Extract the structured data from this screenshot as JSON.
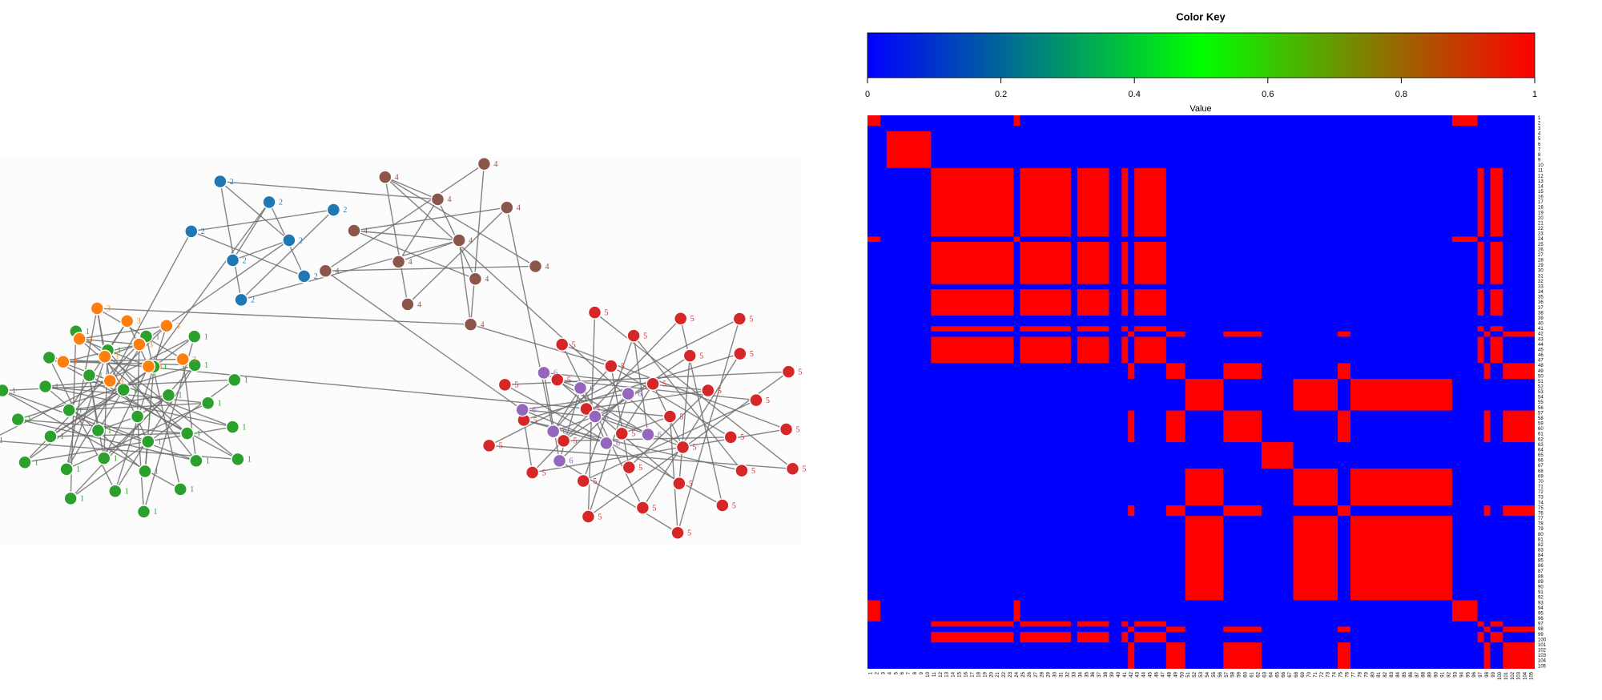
{
  "chart_data": [
    {
      "type": "network",
      "group_colors": {
        "1": "#2ca02c",
        "2": "#1f77b4",
        "3": "#ff7f0e",
        "4": "#8c564b",
        "5": "#d62728",
        "6": "#9467bd"
      },
      "nodes": [
        1,
        1,
        1,
        1,
        1,
        1,
        1,
        1,
        1,
        1,
        1,
        1,
        1,
        1,
        1,
        1,
        1,
        1,
        1,
        1,
        1,
        1,
        1,
        1,
        1,
        1,
        1,
        1,
        1,
        1,
        1,
        1,
        1,
        3,
        3,
        3,
        3,
        3,
        3,
        3,
        3,
        3,
        3,
        2,
        2,
        2,
        2,
        2,
        2,
        2,
        2,
        4,
        4,
        4,
        4,
        4,
        4,
        4,
        4,
        4,
        4,
        4,
        4,
        5,
        5,
        5,
        5,
        5,
        5,
        5,
        5,
        5,
        5,
        5,
        5,
        5,
        5,
        5,
        5,
        5,
        5,
        5,
        5,
        5,
        5,
        5,
        5,
        5,
        5,
        5,
        5,
        5,
        5,
        5,
        5,
        5,
        6,
        6,
        6,
        6,
        6,
        6,
        6,
        6,
        6
      ],
      "edges": [
        [
          0,
          1
        ],
        [
          0,
          5
        ],
        [
          1,
          2
        ],
        [
          1,
          7
        ],
        [
          2,
          3
        ],
        [
          2,
          9
        ],
        [
          3,
          4
        ],
        [
          3,
          11
        ],
        [
          4,
          5
        ],
        [
          4,
          13
        ],
        [
          5,
          6
        ],
        [
          6,
          7
        ],
        [
          6,
          15
        ],
        [
          7,
          8
        ],
        [
          8,
          9
        ],
        [
          8,
          17
        ],
        [
          9,
          10
        ],
        [
          10,
          11
        ],
        [
          10,
          19
        ],
        [
          11,
          12
        ],
        [
          12,
          13
        ],
        [
          12,
          21
        ],
        [
          13,
          14
        ],
        [
          14,
          15
        ],
        [
          14,
          23
        ],
        [
          15,
          16
        ],
        [
          16,
          17
        ],
        [
          16,
          25
        ],
        [
          17,
          18
        ],
        [
          18,
          19
        ],
        [
          18,
          27
        ],
        [
          19,
          20
        ],
        [
          20,
          21
        ],
        [
          20,
          29
        ],
        [
          21,
          22
        ],
        [
          22,
          23
        ],
        [
          22,
          31
        ],
        [
          23,
          24
        ],
        [
          24,
          25
        ],
        [
          25,
          26
        ],
        [
          26,
          27
        ],
        [
          27,
          28
        ],
        [
          28,
          29
        ],
        [
          29,
          30
        ],
        [
          30,
          31
        ],
        [
          31,
          32
        ],
        [
          32,
          0
        ],
        [
          33,
          0
        ],
        [
          33,
          34
        ],
        [
          34,
          2
        ],
        [
          34,
          35
        ],
        [
          35,
          4
        ],
        [
          35,
          36
        ],
        [
          36,
          6
        ],
        [
          36,
          37
        ],
        [
          37,
          8
        ],
        [
          37,
          38
        ],
        [
          38,
          10
        ],
        [
          38,
          39
        ],
        [
          39,
          12
        ],
        [
          39,
          40
        ],
        [
          40,
          14
        ],
        [
          40,
          41
        ],
        [
          41,
          16
        ],
        [
          41,
          42
        ],
        [
          42,
          18
        ],
        [
          42,
          33
        ],
        [
          33,
          37
        ],
        [
          34,
          40
        ],
        [
          43,
          44
        ],
        [
          44,
          45
        ],
        [
          45,
          46
        ],
        [
          46,
          47
        ],
        [
          47,
          48
        ],
        [
          48,
          49
        ],
        [
          49,
          50
        ],
        [
          50,
          43
        ],
        [
          43,
          33
        ],
        [
          45,
          36
        ],
        [
          47,
          39
        ],
        [
          49,
          51
        ],
        [
          50,
          53
        ],
        [
          51,
          52
        ],
        [
          52,
          53
        ],
        [
          53,
          54
        ],
        [
          54,
          55
        ],
        [
          55,
          56
        ],
        [
          56,
          57
        ],
        [
          57,
          58
        ],
        [
          58,
          59
        ],
        [
          59,
          60
        ],
        [
          60,
          61
        ],
        [
          61,
          62
        ],
        [
          62,
          51
        ],
        [
          51,
          55
        ],
        [
          53,
          58
        ],
        [
          56,
          97
        ],
        [
          60,
          100
        ],
        [
          62,
          70
        ],
        [
          58,
          66
        ],
        [
          63,
          64
        ],
        [
          64,
          65
        ],
        [
          65,
          66
        ],
        [
          66,
          67
        ],
        [
          67,
          68
        ],
        [
          68,
          69
        ],
        [
          69,
          70
        ],
        [
          70,
          71
        ],
        [
          71,
          72
        ],
        [
          72,
          73
        ],
        [
          73,
          74
        ],
        [
          74,
          75
        ],
        [
          75,
          76
        ],
        [
          76,
          77
        ],
        [
          77,
          78
        ],
        [
          78,
          79
        ],
        [
          79,
          80
        ],
        [
          80,
          81
        ],
        [
          81,
          82
        ],
        [
          82,
          83
        ],
        [
          83,
          84
        ],
        [
          84,
          85
        ],
        [
          85,
          86
        ],
        [
          86,
          87
        ],
        [
          87,
          88
        ],
        [
          88,
          89
        ],
        [
          89,
          90
        ],
        [
          90,
          91
        ],
        [
          91,
          92
        ],
        [
          92,
          93
        ],
        [
          93,
          94
        ],
        [
          94,
          95
        ],
        [
          95,
          63
        ],
        [
          96,
          97
        ],
        [
          97,
          98
        ],
        [
          98,
          99
        ],
        [
          99,
          100
        ],
        [
          100,
          101
        ],
        [
          101,
          102
        ],
        [
          102,
          103
        ],
        [
          103,
          104
        ],
        [
          104,
          96
        ],
        [
          96,
          65
        ],
        [
          97,
          70
        ],
        [
          98,
          75
        ],
        [
          99,
          80
        ],
        [
          100,
          85
        ],
        [
          101,
          90
        ],
        [
          102,
          95
        ],
        [
          103,
          68
        ],
        [
          104,
          78
        ],
        [
          96,
          100
        ],
        [
          98,
          102
        ],
        [
          40,
          62
        ],
        [
          20,
          63
        ]
      ]
    },
    {
      "type": "heatmap",
      "key_title": "Color Key",
      "key_xlabel": "Value",
      "colors": [
        "#0000ff",
        "#00ff00",
        "#ff0000"
      ],
      "xlim": [
        0,
        1
      ],
      "xticks": [
        0,
        0.2,
        0.4,
        0.6,
        0.8,
        1
      ],
      "background": 0,
      "symmetric": true,
      "labels": [
        1,
        2,
        3,
        4,
        5,
        6,
        7,
        8,
        9,
        10,
        11,
        12,
        13,
        14,
        15,
        16,
        17,
        18,
        19,
        20,
        21,
        22,
        23,
        24,
        25,
        26,
        27,
        28,
        29,
        30,
        31,
        32,
        33,
        34,
        35,
        36,
        37,
        38,
        39,
        40,
        41,
        42,
        43,
        44,
        45,
        46,
        47,
        48,
        49,
        50,
        51,
        52,
        53,
        54,
        55,
        56,
        57,
        58,
        59,
        60,
        61,
        62,
        63,
        64,
        65,
        66,
        67,
        68,
        69,
        70,
        71,
        72,
        73,
        74,
        75,
        76,
        77,
        78,
        79,
        80,
        81,
        82,
        83,
        84,
        85,
        86,
        87,
        88,
        89,
        90,
        91,
        92,
        93,
        94,
        95,
        96,
        97,
        98,
        99,
        100,
        101,
        102,
        103,
        104,
        105
      ],
      "groups": [
        {
          "value": 1,
          "ranges": [
            [
              11,
              23
            ],
            [
              25,
              32
            ],
            [
              34,
              38
            ],
            [
              41,
              41
            ],
            [
              43,
              47
            ],
            [
              97,
              97
            ],
            [
              99,
              100
            ]
          ]
        },
        {
          "value": 1,
          "ranges": [
            [
              51,
              56
            ],
            [
              68,
              74
            ],
            [
              77,
              92
            ]
          ]
        },
        {
          "value": 1,
          "ranges": [
            [
              63,
              67
            ]
          ]
        },
        {
          "value": 1,
          "ranges": [
            [
              1,
              2
            ],
            [
              24,
              24
            ],
            [
              93,
              96
            ]
          ]
        },
        {
          "value": 1,
          "ranges": [
            [
              4,
              10
            ]
          ]
        },
        {
          "value": 1,
          "ranges": [
            [
              42,
              42
            ],
            [
              48,
              50
            ],
            [
              57,
              62
            ],
            [
              75,
              76
            ],
            [
              98,
              98
            ],
            [
              101,
              105
            ]
          ]
        }
      ]
    }
  ]
}
